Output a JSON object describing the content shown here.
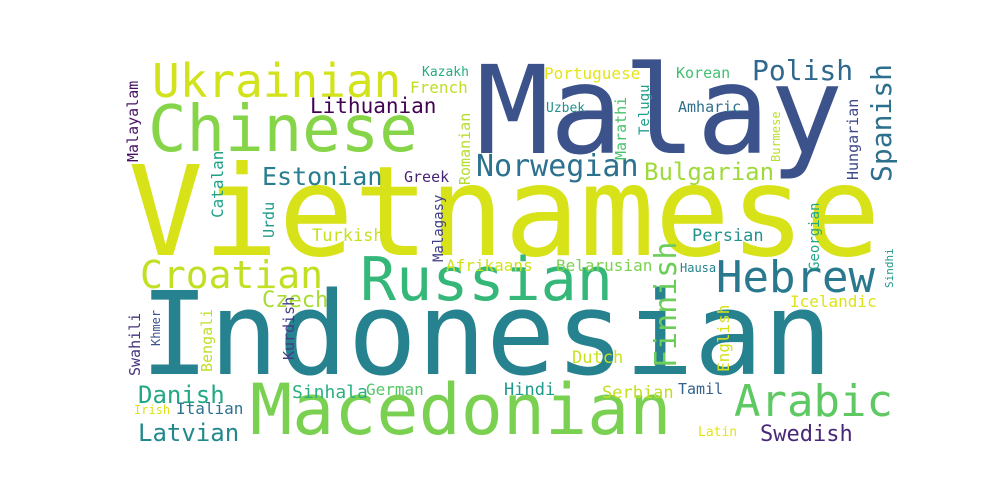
{
  "words": [
    {
      "id": "malay",
      "text": "Malay",
      "color": "#3b528b"
    },
    {
      "id": "vietnamese",
      "text": "Vietnamese",
      "color": "#d8e219"
    },
    {
      "id": "indonesian",
      "text": "Indonesian",
      "color": "#26828e"
    },
    {
      "id": "chinese",
      "text": "Chinese",
      "color": "#86d549"
    },
    {
      "id": "ukrainian",
      "text": "Ukrainian",
      "color": "#d2e21b"
    },
    {
      "id": "russian",
      "text": "Russian",
      "color": "#35b779"
    },
    {
      "id": "macedonian",
      "text": "Macedonian",
      "color": "#7ad151"
    },
    {
      "id": "croatian",
      "text": "Croatian",
      "color": "#c2df23"
    },
    {
      "id": "hebrew",
      "text": "Hebrew",
      "color": "#2a788e"
    },
    {
      "id": "arabic",
      "text": "Arabic",
      "color": "#5ec962"
    },
    {
      "id": "norwegian",
      "text": "Norwegian",
      "color": "#2c728e"
    },
    {
      "id": "polish",
      "text": "Polish",
      "color": "#31688e"
    },
    {
      "id": "bulgarian",
      "text": "Bulgarian",
      "color": "#9fda3a"
    },
    {
      "id": "estonian",
      "text": "Estonian",
      "color": "#287d8e"
    },
    {
      "id": "lithuanian",
      "text": "Lithuanian",
      "color": "#440154"
    },
    {
      "id": "finnish",
      "text": "Finnish",
      "color": "#6ccd5a"
    },
    {
      "id": "spanish",
      "text": "Spanish",
      "color": "#2d708e"
    },
    {
      "id": "danish",
      "text": "Danish",
      "color": "#22a884"
    },
    {
      "id": "latvian",
      "text": "Latvian",
      "color": "#23888e"
    },
    {
      "id": "swedish",
      "text": "Swedish",
      "color": "#482878"
    },
    {
      "id": "czech",
      "text": "Czech",
      "color": "#a8db34"
    },
    {
      "id": "portuguese",
      "text": "Portuguese",
      "color": "#e5e419"
    },
    {
      "id": "korean",
      "text": "Korean",
      "color": "#42be71"
    },
    {
      "id": "kazakh",
      "text": "Kazakh",
      "color": "#25ac82"
    },
    {
      "id": "french",
      "text": "French",
      "color": "#bddf26"
    },
    {
      "id": "romanian",
      "text": "Romanian",
      "color": "#b5de2b"
    },
    {
      "id": "uzbek",
      "text": "Uzbek",
      "color": "#21918c"
    },
    {
      "id": "marathi",
      "text": "Marathi",
      "color": "#4ac16d"
    },
    {
      "id": "telugu",
      "text": "Telugu",
      "color": "#1f9e89"
    },
    {
      "id": "amharic",
      "text": "Amharic",
      "color": "#2e6f8e"
    },
    {
      "id": "hungarian",
      "text": "Hungarian",
      "color": "#3e4989"
    },
    {
      "id": "burmese",
      "text": "Burmese",
      "color": "#b8de29"
    },
    {
      "id": "malayalam",
      "text": "Malayalam",
      "color": "#471063"
    },
    {
      "id": "catalan",
      "text": "Catalan",
      "color": "#1fa187"
    },
    {
      "id": "greek",
      "text": "Greek",
      "color": "#482475"
    },
    {
      "id": "malagasy",
      "text": "Malagasy",
      "color": "#424086"
    },
    {
      "id": "urdu",
      "text": "Urdu",
      "color": "#1e9b8a"
    },
    {
      "id": "turkish",
      "text": "Turkish",
      "color": "#c8e020"
    },
    {
      "id": "persian",
      "text": "Persian",
      "color": "#20938c"
    },
    {
      "id": "georgian",
      "text": "Georgian",
      "color": "#22a785"
    },
    {
      "id": "afrikaans",
      "text": "Afrikaans",
      "color": "#d0e11c"
    },
    {
      "id": "belarusian",
      "text": "Belarusian",
      "color": "#7cd250"
    },
    {
      "id": "hausa",
      "text": "Hausa",
      "color": "#25838e"
    },
    {
      "id": "sindhi",
      "text": "Sindhi",
      "color": "#1f988b"
    },
    {
      "id": "icelandic",
      "text": "Icelandic",
      "color": "#dde318"
    },
    {
      "id": "swahili",
      "text": "Swahili",
      "color": "#46327e"
    },
    {
      "id": "khmer",
      "text": "Khmer",
      "color": "#39558c"
    },
    {
      "id": "bengali",
      "text": "Bengali",
      "color": "#c0df25"
    },
    {
      "id": "kurdish",
      "text": "Kurdish",
      "color": "#433e85"
    },
    {
      "id": "english",
      "text": "English",
      "color": "#d5e21a"
    },
    {
      "id": "dutch",
      "text": "Dutch",
      "color": "#cae11f"
    },
    {
      "id": "sinhala",
      "text": "Sinhala",
      "color": "#2ab07f"
    },
    {
      "id": "german",
      "text": "German",
      "color": "#56c667"
    },
    {
      "id": "hindi",
      "text": "Hindi",
      "color": "#1f998a"
    },
    {
      "id": "serbian",
      "text": "Serbian",
      "color": "#c2df23"
    },
    {
      "id": "tamil",
      "text": "Tamil",
      "color": "#34618d"
    },
    {
      "id": "irish",
      "text": "Irish",
      "color": "#dae319"
    },
    {
      "id": "italian",
      "text": "Italian",
      "color": "#2d718e"
    },
    {
      "id": "latin",
      "text": "Latin",
      "color": "#e2e418"
    }
  ]
}
